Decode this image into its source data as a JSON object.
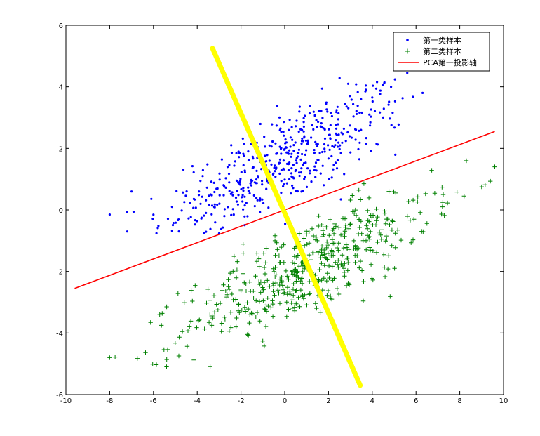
{
  "chart_data": {
    "type": "scatter",
    "xlim": [
      -10,
      10
    ],
    "ylim": [
      -6,
      6
    ],
    "xticks": [
      "-10",
      "-8",
      "-6",
      "-4",
      "-2",
      "0",
      "2",
      "4",
      "6",
      "8",
      "10"
    ],
    "yticks": [
      "-6",
      "-4",
      "-2",
      "0",
      "2",
      "4",
      "6"
    ],
    "grid": false,
    "legend_position": "top-right",
    "series": [
      {
        "name": "第一类样本",
        "marker": "dot",
        "color": "#0000ff",
        "n": 500,
        "center": [
          0,
          1.6
        ],
        "x_range": [
          -8,
          6.3
        ],
        "y_range": [
          -0.8,
          4.6
        ],
        "slope": 0.35,
        "outliers": [
          [
            -8.0,
            -0.15
          ],
          [
            -7.2,
            -0.7
          ],
          [
            -7.0,
            0.6
          ],
          [
            5.6,
            4.45
          ],
          [
            6.3,
            3.8
          ],
          [
            -3.6,
            -0.1
          ],
          [
            2.9,
            4.1
          ]
        ]
      },
      {
        "name": "第二类样本",
        "marker": "plus",
        "color": "#008000",
        "n": 500,
        "center": [
          1.0,
          -1.9
        ],
        "x_range": [
          -8,
          9.6
        ],
        "y_range": [
          -5.1,
          1.6
        ],
        "slope": 0.35,
        "outliers": [
          [
            -8.0,
            -4.8
          ],
          [
            -5.4,
            -5.1
          ],
          [
            9.6,
            1.4
          ],
          [
            9.0,
            0.75
          ],
          [
            8.3,
            1.6
          ],
          [
            8.2,
            0.45
          ]
        ]
      },
      {
        "name": "PCA第一投影轴",
        "type": "line",
        "color": "#ff0000",
        "x": [
          -9.6,
          9.6
        ],
        "y": [
          -2.55,
          2.55
        ]
      }
    ],
    "annotations": [
      {
        "type": "line",
        "color": "#ffff00",
        "x": [
          -3.3,
          3.45
        ],
        "y": [
          5.25,
          -5.7
        ]
      }
    ]
  }
}
